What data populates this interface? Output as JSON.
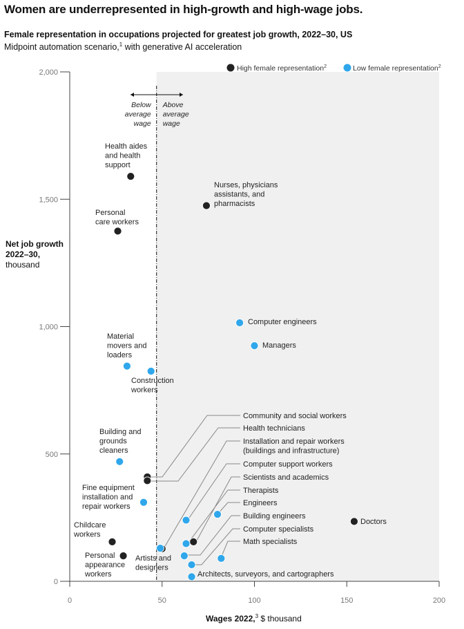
{
  "title": "Women are underrepresented in high-growth and high-wage jobs.",
  "subtitle": "Female representation in occupations projected for greatest job growth, 2022–30, US",
  "subtitle2_text": "Midpoint automation scenario,",
  "subtitle2_sup": "1",
  "subtitle2_rest": " with generative AI acceleration",
  "ylabel_bold": "Net job growth 2022–30,",
  "ylabel_rest": "thousand",
  "xlabel_bold": "Wages 2022,",
  "xlabel_sup": "3",
  "xlabel_rest": " $ thousand",
  "colors": {
    "high_female": "#222222",
    "low_female": "#2fa7ea",
    "above_avg_bg": "#f0f0f0"
  },
  "chart_data": {
    "type": "scatter",
    "xlim": [
      0,
      200
    ],
    "ylim": [
      0,
      2000
    ],
    "x_ticks": [
      0,
      50,
      100,
      150,
      200
    ],
    "x_tick_labels": [
      "0",
      "50",
      "100",
      "150",
      "200"
    ],
    "y_ticks": [
      0,
      500,
      1000,
      1500,
      2000
    ],
    "y_tick_labels": [
      "0",
      "500",
      "1,000",
      "1,500",
      "2,000"
    ],
    "average_wage": 47,
    "below_label": [
      "Below",
      "average",
      "wage"
    ],
    "above_label": [
      "Above",
      "average",
      "wage"
    ],
    "legend": [
      {
        "key": "high",
        "label": "High female representation",
        "sup": "2"
      },
      {
        "key": "low",
        "label": "Low female representation",
        "sup": "2"
      }
    ],
    "points": [
      {
        "label": [
          "Health aides",
          "and health",
          "support"
        ],
        "x": 33,
        "y": 1590,
        "group": "high"
      },
      {
        "label": [
          "Personal",
          "care workers"
        ],
        "x": 26,
        "y": 1375,
        "group": "high"
      },
      {
        "label": [
          "Nurses, physicians",
          "assistants, and",
          "pharmacists"
        ],
        "x": 74,
        "y": 1475,
        "group": "high"
      },
      {
        "label": [
          "Computer engineers"
        ],
        "x": 92,
        "y": 1015,
        "group": "low"
      },
      {
        "label": [
          "Managers"
        ],
        "x": 100,
        "y": 925,
        "group": "low"
      },
      {
        "label": [
          "Material",
          "movers and",
          "loaders"
        ],
        "x": 31,
        "y": 845,
        "group": "low"
      },
      {
        "label": [
          "Construction",
          "workers"
        ],
        "x": 44,
        "y": 825,
        "group": "low"
      },
      {
        "label": [
          "Building and",
          "grounds",
          "cleaners"
        ],
        "x": 27,
        "y": 470,
        "group": "low"
      },
      {
        "label": [
          "Fine equipment",
          "installation and",
          "repair workers"
        ],
        "x": 40,
        "y": 310,
        "group": "low"
      },
      {
        "label": [
          "Childcare",
          "workers"
        ],
        "x": 23,
        "y": 155,
        "group": "high"
      },
      {
        "label": [
          "Personal",
          "appearance",
          "workers"
        ],
        "x": 29,
        "y": 100,
        "group": "high"
      },
      {
        "label": [
          "Artists and",
          "designers"
        ],
        "x": 50,
        "y": 128,
        "group": "high"
      },
      {
        "label": [
          "Doctors"
        ],
        "x": 154,
        "y": 235,
        "group": "high"
      },
      {
        "label": [
          "Community and social workers"
        ],
        "x": 42,
        "y": 410,
        "group": "high"
      },
      {
        "label": [
          "Health technicians"
        ],
        "x": 42,
        "y": 395,
        "group": "high"
      },
      {
        "label": [
          "Installation and repair workers",
          "(buildings and infrastructure)"
        ],
        "x": 49,
        "y": 130,
        "group": "low"
      },
      {
        "label": [
          "Computer support workers"
        ],
        "x": 63,
        "y": 240,
        "group": "low"
      },
      {
        "label": [
          "Scientists and academics"
        ],
        "x": 67,
        "y": 155,
        "group": "high"
      },
      {
        "label": [
          "Therapists"
        ],
        "x": 63,
        "y": 148,
        "group": "low"
      },
      {
        "label": [
          "Engineers"
        ],
        "x": 80,
        "y": 263,
        "group": "low"
      },
      {
        "label": [
          "Building engineers"
        ],
        "x": 62,
        "y": 100,
        "group": "low"
      },
      {
        "label": [
          "Computer specialists"
        ],
        "x": 66,
        "y": 65,
        "group": "low"
      },
      {
        "label": [
          "Math specialists"
        ],
        "x": 82,
        "y": 90,
        "group": "low"
      },
      {
        "label": [
          "Architects, surveyors, and cartographers"
        ],
        "x": 66,
        "y": 18,
        "group": "low"
      }
    ]
  }
}
